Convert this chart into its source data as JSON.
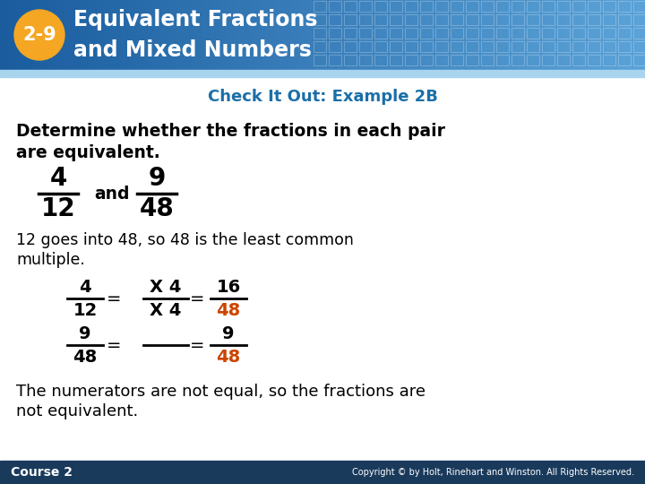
{
  "badge_color": "#F5A623",
  "badge_text": "2-9",
  "header_line1": "Equivalent Fractions",
  "header_line2": "and Mixed Numbers",
  "header_text_color": "#FFFFFF",
  "subtitle": "Check It Out: Example 2B",
  "subtitle_color": "#1B6FA8",
  "body_text_color": "#000000",
  "orange_color": "#CC4400",
  "footer_bg_color": "#1A3A5C",
  "footer_left": "Course 2",
  "footer_right": "Copyright © by Holt, Rinehart and Winston. All Rights Reserved.",
  "footer_text_color": "#FFFFFF",
  "bg_color": "#FFFFFF",
  "header_color_left": "#1A5C9E",
  "header_color_right": "#5BA3D8"
}
